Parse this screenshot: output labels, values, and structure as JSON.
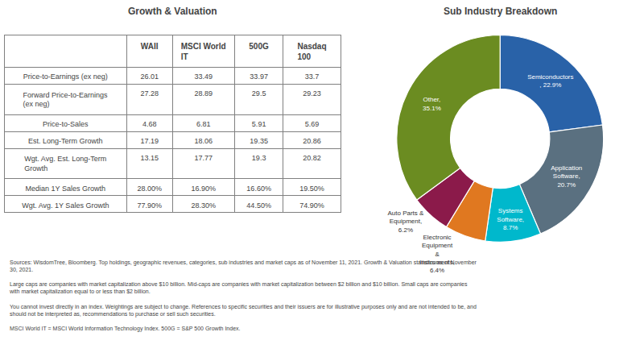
{
  "chart_data": [
    {
      "type": "table",
      "title": "Growth & Valuation",
      "columns": [
        "",
        "WAII",
        "MSCI World IT",
        "500G",
        "Nasdaq\n100"
      ],
      "rows": [
        [
          "Price-to-Earnings (ex neg)",
          "26.01",
          "33.49",
          "33.97",
          "33.7"
        ],
        [
          "Forward Price-to-Earnings\n(ex neg)",
          "27.28",
          "28.89",
          "29.5",
          "29.23"
        ],
        [
          "Price-to-Sales",
          "4.68",
          "6.81",
          "5.91",
          "5.69"
        ],
        [
          "Est. Long-Term Growth",
          "17.19",
          "18.06",
          "19.35",
          "20.86"
        ],
        [
          "Wgt. Avg. Est. Long-Term\nGrowth",
          "13.15",
          "17.77",
          "19.3",
          "20.82"
        ],
        [
          "Median 1Y Sales Growth",
          "28.00%",
          "16.90%",
          "16.60%",
          "19.50%"
        ],
        [
          "Wgt. Avg. 1Y Sales Growth",
          "77.90%",
          "28.30%",
          "44.50%",
          "74.90%"
        ]
      ],
      "annotations": [
        "Sources: WisdomTree, Bloomberg. Top holdings, geographic revenues, categories, sub industries and market caps as of November 11, 2021. Growth & Valuation statistics as of November\n30, 2021.",
        "Large caps are companies with market capitalization above $10 billion. Mid-caps are companies with market capitalization between $2 billion and $10 billion. Small caps are companies\nwith market capitalization equal to or less than $2 billion.",
        "You cannot invest directly in an index. Weightings are subject to change. References to specific securities and their issuers are for illustrative purposes only and are not intended to be, and\nshould not be interpreted as, recommendations to purchase or sell such securities.",
        "MSCI World IT = MSCI World Information Technology Index. 500G = S&P 500 Growth Index."
      ]
    },
    {
      "type": "pie",
      "title": "Sub Industry Breakdown",
      "categories": [
        "Semiconductors",
        "Application Software",
        "Systems Software",
        "Electronic Equipment & Instruments",
        "Auto Parts & Equipment",
        "Other"
      ],
      "values": [
        22.9,
        20.7,
        8.7,
        6.4,
        6.2,
        35.1
      ],
      "value_labels": [
        "Semiconductors\n, 22.9%",
        "Application\nSoftware,\n20.7%",
        "Systems\nSoftware,\n8.7%",
        "Electronic\nEquipment\n&\nInstruments,\n6.4%",
        "Auto Parts &\nEquipment,\n6.2%",
        "Other,\n35.1%"
      ],
      "colors": [
        "#2962a8",
        "#5a7080",
        "#00b8cc",
        "#e07820",
        "#8b1a4a",
        "#6b8c21"
      ]
    }
  ]
}
